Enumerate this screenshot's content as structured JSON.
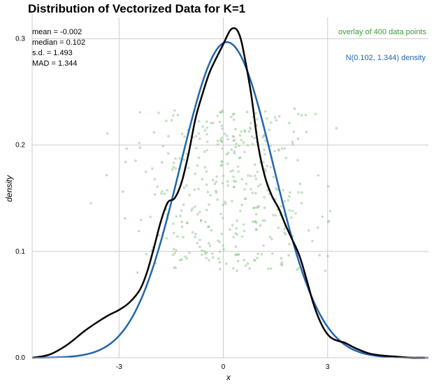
{
  "chart_data": {
    "type": "line",
    "title": "Distribution of Vectorized Data for K=1",
    "xlabel": "x",
    "ylabel": "density",
    "xlim": [
      -5.5,
      5.9
    ],
    "ylim": [
      0,
      0.32
    ],
    "xticks": [
      -3,
      0,
      3
    ],
    "xtick_labels": [
      "-3",
      "0",
      "3"
    ],
    "yticks": [
      0.0,
      0.1,
      0.2,
      0.3
    ],
    "ytick_labels": [
      "0.0",
      "0.1",
      "0.2",
      "0.3"
    ],
    "grid": true,
    "stats": [
      "mean = -0.002",
      "median = 0.102",
      "s.d. = 1.493",
      "MAD = 1.344"
    ],
    "annotations": {
      "overlay": "overlay of 400 data points",
      "normal": "N(0.102, 1.344) density"
    },
    "colors": {
      "kde": "#000000",
      "normal": "#2166ac",
      "points": "#90c98a",
      "overlay_text": "#3a9a3a",
      "normal_text": "#2166ac",
      "grid": "#cccccc"
    },
    "normal_params": {
      "mean": 0.102,
      "sd": 1.344
    },
    "series": [
      {
        "type": "kde",
        "x": [
          -5.5,
          -5.0,
          -4.5,
          -4.0,
          -3.6,
          -3.3,
          -3.0,
          -2.7,
          -2.4,
          -2.2,
          -2.0,
          -1.8,
          -1.6,
          -1.4,
          -1.2,
          -1.0,
          -0.8,
          -0.6,
          -0.4,
          -0.2,
          0.0,
          0.1,
          0.2,
          0.3,
          0.4,
          0.5,
          0.6,
          0.8,
          1.0,
          1.2,
          1.4,
          1.6,
          1.8,
          2.0,
          2.2,
          2.4,
          2.6,
          2.8,
          3.0,
          3.2,
          3.5,
          3.8,
          4.2,
          4.6,
          5.0,
          5.4,
          5.8
        ],
        "y": [
          0.0,
          0.003,
          0.012,
          0.025,
          0.034,
          0.04,
          0.045,
          0.052,
          0.064,
          0.08,
          0.103,
          0.128,
          0.146,
          0.15,
          0.165,
          0.192,
          0.225,
          0.248,
          0.268,
          0.282,
          0.295,
          0.302,
          0.308,
          0.31,
          0.308,
          0.3,
          0.285,
          0.248,
          0.2,
          0.17,
          0.152,
          0.14,
          0.124,
          0.11,
          0.095,
          0.073,
          0.05,
          0.033,
          0.022,
          0.017,
          0.014,
          0.009,
          0.004,
          0.002,
          0.001,
          0.0,
          0.0
        ]
      }
    ]
  }
}
